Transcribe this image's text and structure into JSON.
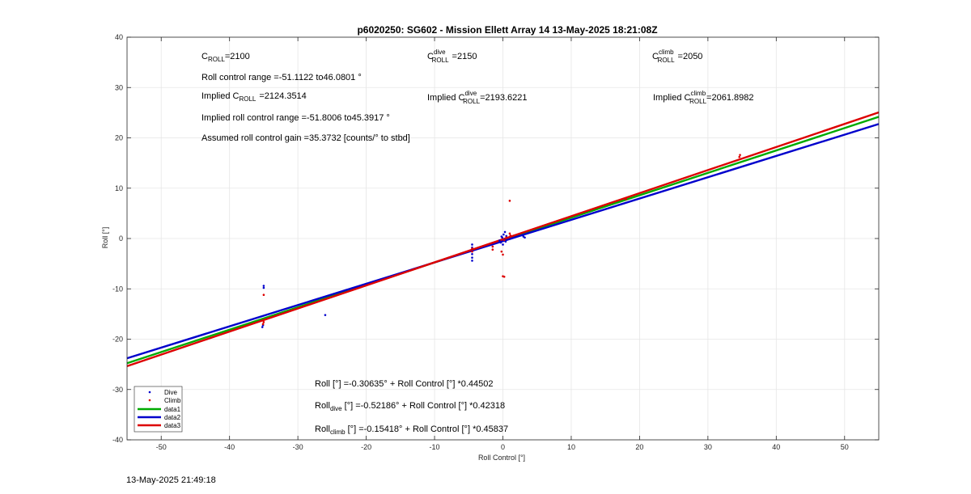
{
  "chart_data": {
    "type": "scatter",
    "title": "p6020250: SG602 - Mission Ellett Array 14 13-May-2025 18:21:08Z",
    "xlabel": "Roll Control [°]",
    "ylabel": "Roll [°]",
    "xlim": [
      -55,
      55
    ],
    "ylim": [
      -40,
      40
    ],
    "xticks": [
      -50,
      -40,
      -30,
      -20,
      -10,
      0,
      10,
      20,
      30,
      40,
      50
    ],
    "yticks": [
      -40,
      -30,
      -20,
      -10,
      0,
      10,
      20,
      30,
      40
    ],
    "grid": true,
    "legend_position": "bottom-left",
    "series": [
      {
        "name": "Dive",
        "kind": "points",
        "color": "#0000cc",
        "points": [
          [
            -35.0,
            -9.8
          ],
          [
            -35.0,
            -9.4
          ],
          [
            -35.1,
            -17.2
          ],
          [
            -35.2,
            -17.6
          ],
          [
            -26.0,
            -15.2
          ],
          [
            -4.5,
            -1.2
          ],
          [
            -4.5,
            -1.8
          ],
          [
            -4.5,
            -2.5
          ],
          [
            -4.5,
            -3.1
          ],
          [
            -4.5,
            -3.8
          ],
          [
            -4.5,
            -4.4
          ],
          [
            -0.5,
            -0.4
          ],
          [
            -0.3,
            -0.8
          ],
          [
            -0.2,
            0.4
          ],
          [
            0.0,
            -1.2
          ],
          [
            0.1,
            0.8
          ],
          [
            0.2,
            -0.2
          ],
          [
            0.3,
            1.3
          ],
          [
            0.4,
            -0.6
          ],
          [
            -0.1,
            0.2
          ],
          [
            0.5,
            0.5
          ],
          [
            3.0,
            0.4
          ],
          [
            3.2,
            0.2
          ]
        ]
      },
      {
        "name": "Climb",
        "kind": "points",
        "color": "#dd0000",
        "points": [
          [
            -35.0,
            -11.2
          ],
          [
            -35.0,
            -16.6
          ],
          [
            -35.1,
            -17.0
          ],
          [
            -4.5,
            -2.0
          ],
          [
            -4.5,
            -2.6
          ],
          [
            -1.5,
            -1.6
          ],
          [
            -1.5,
            -2.2
          ],
          [
            0.0,
            -7.5
          ],
          [
            0.2,
            -7.6
          ],
          [
            -0.2,
            -2.6
          ],
          [
            0.0,
            -3.2
          ],
          [
            1.0,
            7.5
          ],
          [
            1.0,
            1.0
          ],
          [
            1.1,
            0.6
          ],
          [
            0.5,
            0.2
          ],
          [
            0.2,
            -0.3
          ],
          [
            18.0,
            7.8
          ],
          [
            34.6,
            16.2
          ],
          [
            34.7,
            16.6
          ]
        ]
      },
      {
        "name": "data1",
        "kind": "line",
        "color": "#00aa00",
        "intercept": -0.30635,
        "slope": 0.44502
      },
      {
        "name": "data2",
        "kind": "line",
        "color": "#0000cc",
        "intercept": -0.52186,
        "slope": 0.42318
      },
      {
        "name": "data3",
        "kind": "line",
        "color": "#dd0000",
        "intercept": -0.15418,
        "slope": 0.45837
      }
    ],
    "annotations": {
      "c_roll_base": "C",
      "c_roll_sub": "ROLL",
      "c_roll_val": "=2100",
      "range_text": "Roll control range =-51.1122 to46.0801 °",
      "implied_text": "Implied C",
      "implied_sub": "ROLL",
      "implied_val": "=2124.3514",
      "implied_range": "Implied roll control range =-51.8006 to45.3917 °",
      "gain": "Assumed roll control gain =35.3732 [counts/° to stbd]",
      "c_dive_sup": "dive",
      "c_dive_val": "=2150",
      "implied_dive_text": "Implied C",
      "implied_dive_sup": "dive",
      "implied_dive_val": "=2193.6221",
      "c_climb_sup": "climb",
      "c_climb_val": "=2050",
      "implied_climb_text": "Implied C",
      "implied_climb_sup": "climb",
      "implied_climb_val": "=2061.8982",
      "fit_all": "Roll [°] =-0.30635° + Roll Control [°] *0.44502",
      "fit_dive_base": "Roll",
      "fit_dive_sub": "dive",
      "fit_dive_rest": "[°] =-0.52186° + Roll Control [°] *0.42318",
      "fit_climb_base": "Roll",
      "fit_climb_sub": "climb",
      "fit_climb_rest": "[°] =-0.15418° + Roll Control [°] *0.45837"
    }
  },
  "timestamp": "13-May-2025 21:49:18"
}
